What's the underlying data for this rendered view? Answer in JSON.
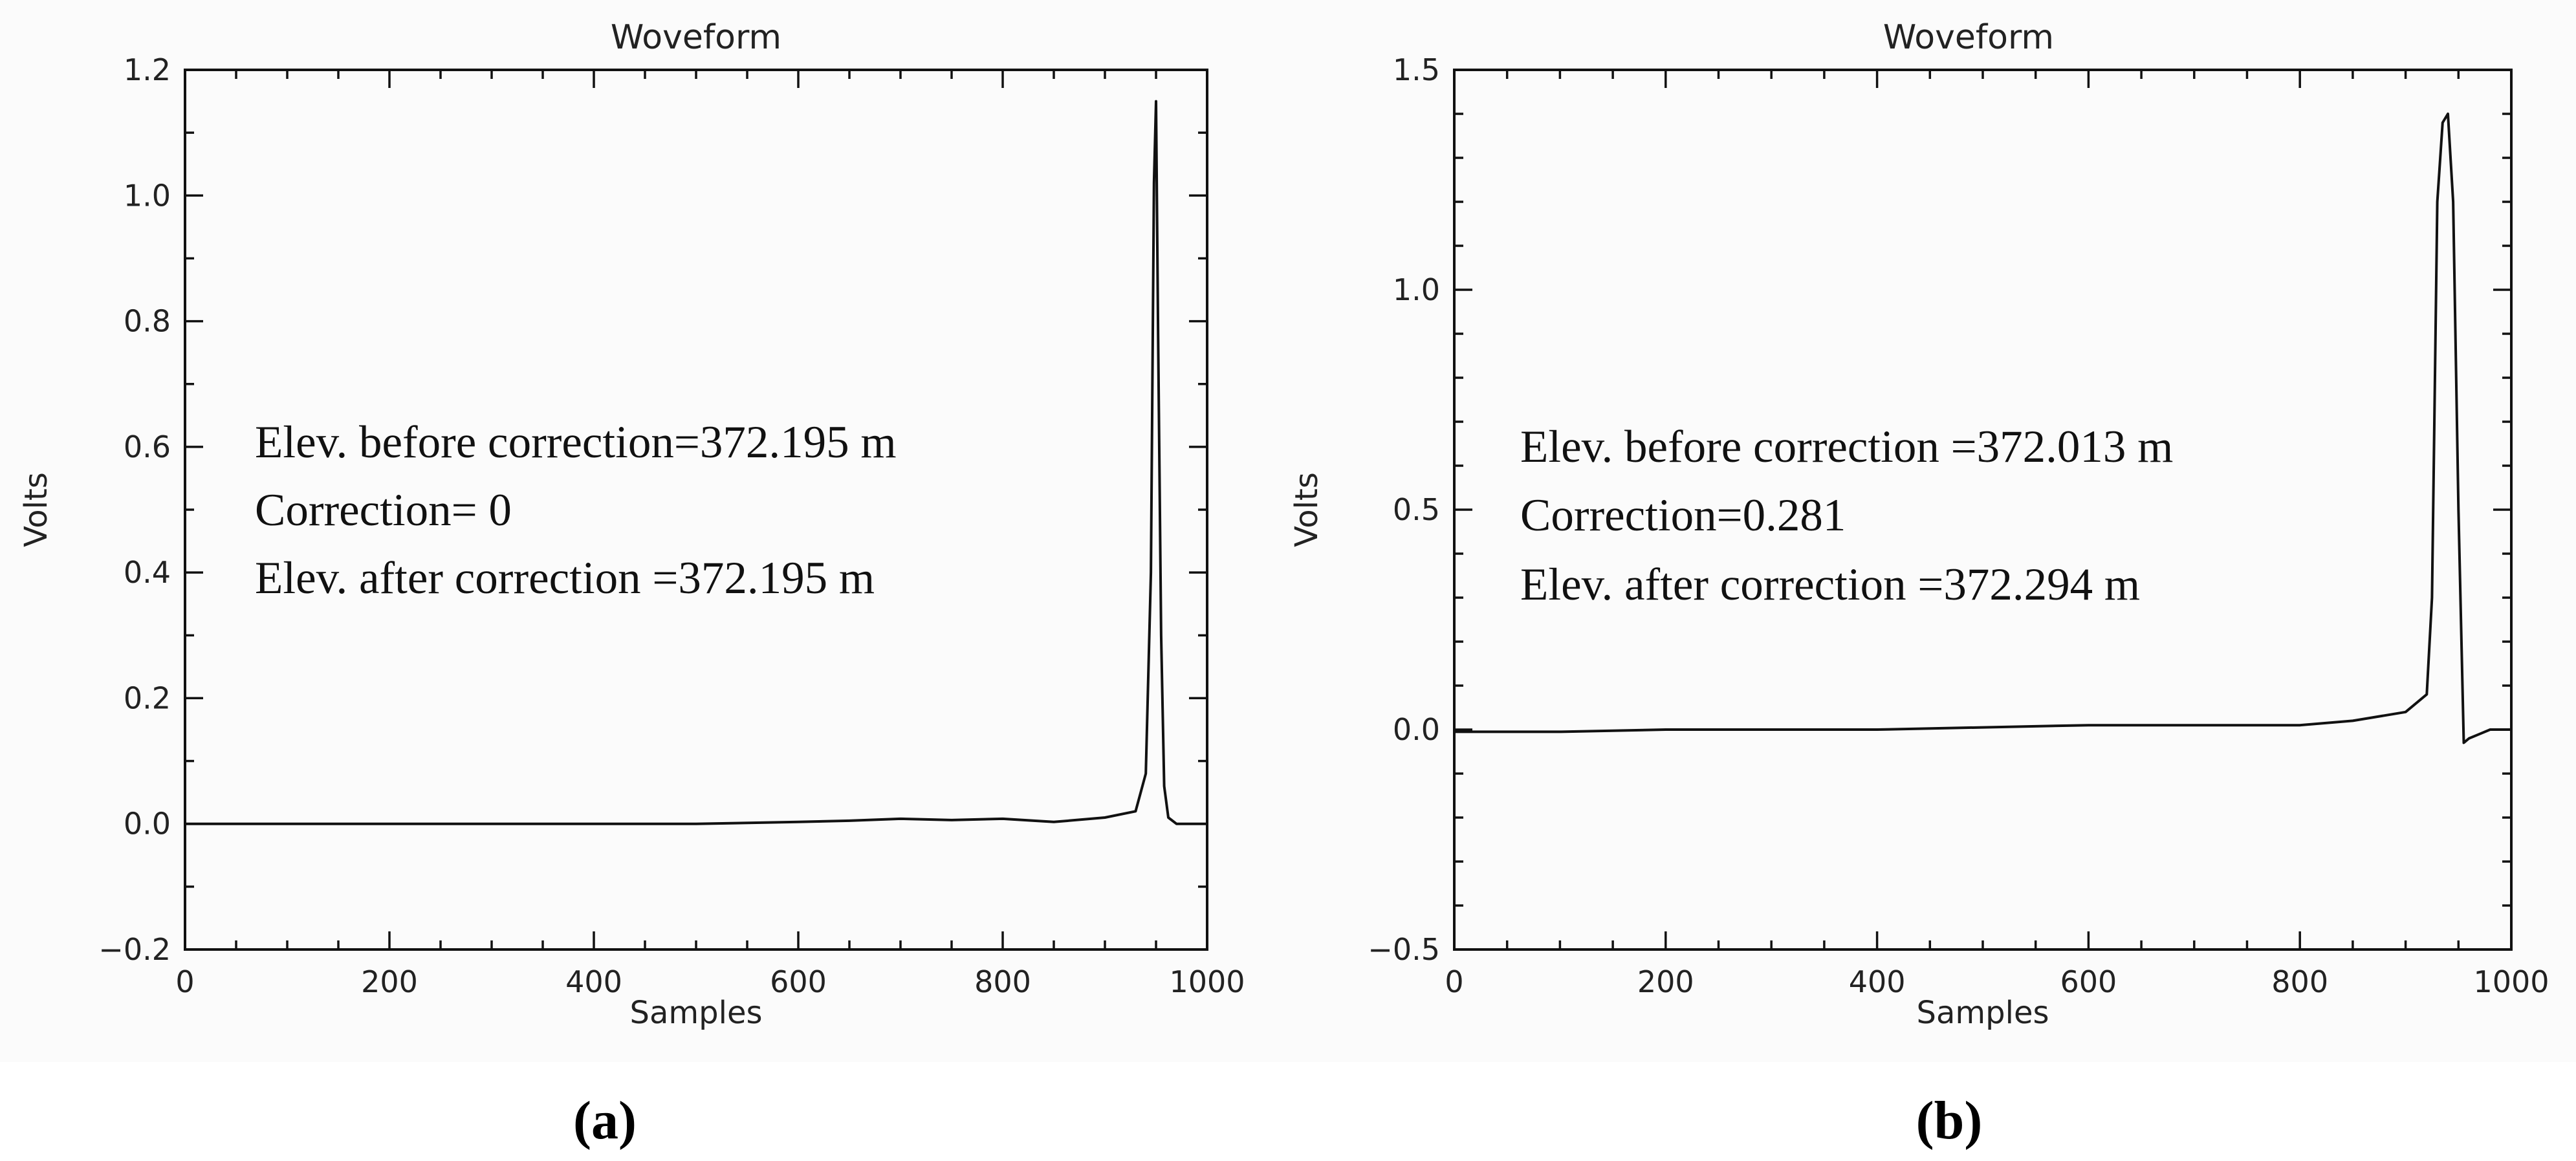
{
  "chart_data": [
    {
      "panel_label": "(a)",
      "type": "line",
      "title": "Woveform",
      "xlabel": "Samples",
      "ylabel": "Volts",
      "xlim": [
        0,
        1000
      ],
      "ylim": [
        -0.2,
        1.2
      ],
      "xticks": [
        "0",
        "200",
        "400",
        "600",
        "800",
        "1000"
      ],
      "yticks": [
        "−0.2",
        "0.0",
        "0.2",
        "0.4",
        "0.6",
        "0.8",
        "1.0",
        "1.2"
      ],
      "annotation": [
        "Elev. before correction=372.195 m",
        "Correction= 0",
        "Elev. after correction =372.195 m"
      ],
      "series": [
        {
          "x": [
            0,
            100,
            200,
            300,
            400,
            500,
            600,
            650,
            700,
            750,
            800,
            850,
            900,
            930,
            940,
            945,
            948,
            950,
            952,
            955,
            958,
            962,
            970,
            1000
          ],
          "y": [
            0.0,
            0.0,
            0.0,
            0.0,
            0.0,
            0.0,
            0.003,
            0.005,
            0.008,
            0.006,
            0.008,
            0.003,
            0.01,
            0.02,
            0.08,
            0.4,
            1.02,
            1.15,
            0.78,
            0.3,
            0.06,
            0.01,
            0.0,
            0.0
          ]
        }
      ]
    },
    {
      "panel_label": "(b)",
      "type": "line",
      "title": "Woveform",
      "xlabel": "Samples",
      "ylabel": "Volts",
      "xlim": [
        0,
        1000
      ],
      "ylim": [
        -0.5,
        1.5
      ],
      "xticks": [
        "0",
        "200",
        "400",
        "600",
        "800",
        "1000"
      ],
      "yticks": [
        "−0.5",
        "0.0",
        "0.5",
        "1.0",
        "1.5"
      ],
      "annotation": [
        "Elev. before correction =372.013 m",
        "Correction=0.281",
        "Elev. after correction =372.294 m"
      ],
      "series": [
        {
          "x": [
            0,
            100,
            200,
            300,
            400,
            500,
            600,
            700,
            800,
            850,
            900,
            920,
            925,
            930,
            935,
            940,
            945,
            950,
            955,
            960,
            970,
            980,
            1000
          ],
          "y": [
            -0.005,
            -0.005,
            0.0,
            0.0,
            0.0,
            0.005,
            0.01,
            0.01,
            0.01,
            0.02,
            0.04,
            0.08,
            0.3,
            1.2,
            1.38,
            1.4,
            1.2,
            0.5,
            -0.03,
            -0.02,
            -0.01,
            0.0,
            0.0
          ]
        }
      ]
    }
  ]
}
